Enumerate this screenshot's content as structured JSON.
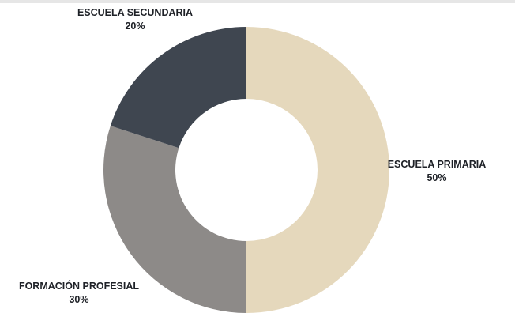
{
  "chart_data": {
    "type": "pie",
    "variant": "donut",
    "slices": [
      {
        "label": "ESCUELA PRIMARIA",
        "value": 50,
        "value_label": "50%",
        "color": "#e5d8bc"
      },
      {
        "label": "FORMACIÓN PROFESIAL",
        "value": 30,
        "value_label": "30%",
        "color": "#8d8a88"
      },
      {
        "label": "ESCUELA SECUNDARIA",
        "value": 20,
        "value_label": "20%",
        "color": "#3f4650"
      }
    ],
    "start_angle": "top",
    "direction": "clockwise",
    "legend": "none"
  }
}
